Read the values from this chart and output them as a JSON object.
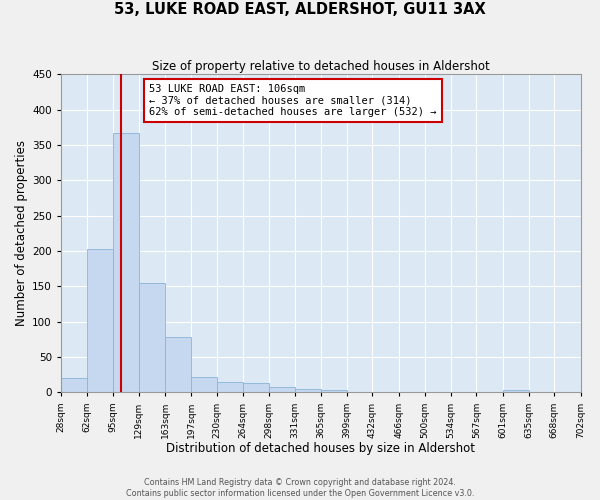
{
  "title": "53, LUKE ROAD EAST, ALDERSHOT, GU11 3AX",
  "subtitle": "Size of property relative to detached houses in Aldershot",
  "xlabel": "Distribution of detached houses by size in Aldershot",
  "ylabel": "Number of detached properties",
  "bar_color": "#c5d8f0",
  "bar_edgecolor": "#8ab4d8",
  "background_color": "#dce9f5",
  "fig_background_color": "#f0f0f0",
  "grid_color": "#ffffff",
  "property_line_x": 106,
  "property_line_color": "#cc0000",
  "bin_edges": [
    28,
    62,
    95,
    129,
    163,
    197,
    230,
    264,
    298,
    331,
    365,
    399,
    432,
    466,
    500,
    534,
    567,
    601,
    635,
    668,
    702
  ],
  "bin_counts": [
    20,
    203,
    367,
    155,
    78,
    22,
    15,
    14,
    8,
    5,
    4,
    0,
    0,
    0,
    0,
    0,
    0,
    3,
    0,
    0
  ],
  "annotation_text": "53 LUKE ROAD EAST: 106sqm\n← 37% of detached houses are smaller (314)\n62% of semi-detached houses are larger (532) →",
  "annotation_box_color": "#ffffff",
  "annotation_box_edgecolor": "#cc0000",
  "ylim": [
    0,
    450
  ],
  "yticks": [
    0,
    50,
    100,
    150,
    200,
    250,
    300,
    350,
    400,
    450
  ],
  "footer_line1": "Contains HM Land Registry data © Crown copyright and database right 2024.",
  "footer_line2": "Contains public sector information licensed under the Open Government Licence v3.0.",
  "tick_labels": [
    "28sqm",
    "62sqm",
    "95sqm",
    "129sqm",
    "163sqm",
    "197sqm",
    "230sqm",
    "264sqm",
    "298sqm",
    "331sqm",
    "365sqm",
    "399sqm",
    "432sqm",
    "466sqm",
    "500sqm",
    "534sqm",
    "567sqm",
    "601sqm",
    "635sqm",
    "668sqm",
    "702sqm"
  ]
}
